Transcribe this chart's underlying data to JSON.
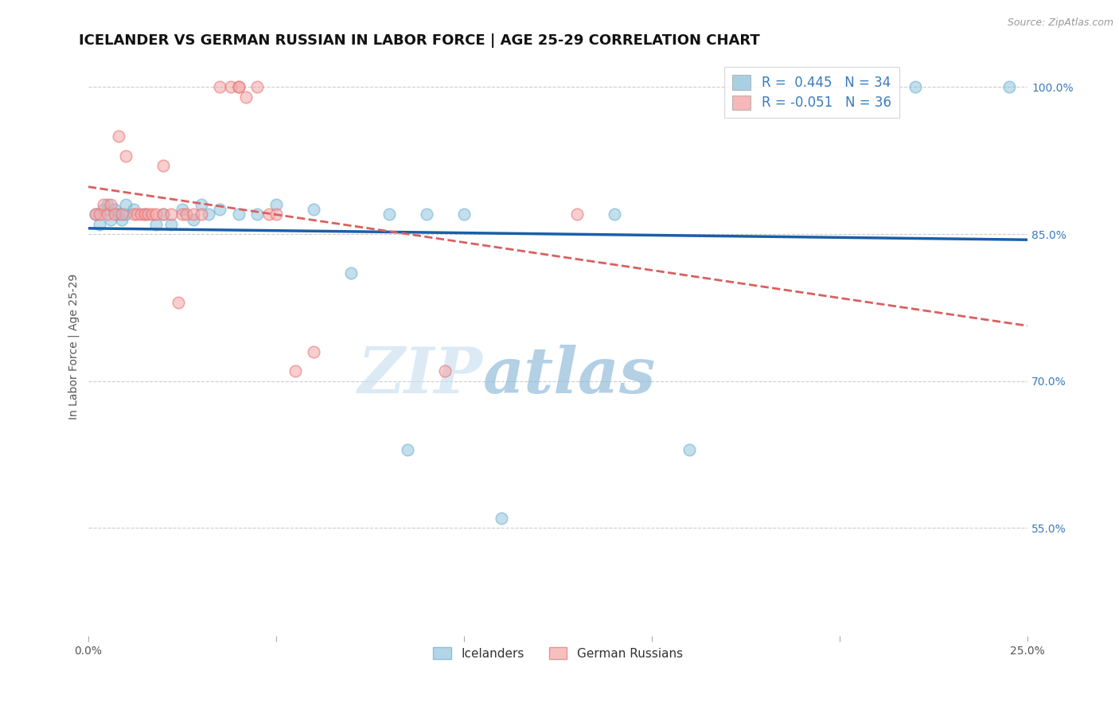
{
  "title": "ICELANDER VS GERMAN RUSSIAN IN LABOR FORCE | AGE 25-29 CORRELATION CHART",
  "source": "Source: ZipAtlas.com",
  "ylabel": "In Labor Force | Age 25-29",
  "xlim": [
    0.0,
    0.25
  ],
  "ylim": [
    0.44,
    1.03
  ],
  "xticks": [
    0.0,
    0.05,
    0.1,
    0.15,
    0.2,
    0.25
  ],
  "xtick_labels": [
    "0.0%",
    "",
    "",
    "",
    "",
    "25.0%"
  ],
  "yticks": [
    0.55,
    0.7,
    0.85,
    1.0
  ],
  "ytick_labels": [
    "55.0%",
    "70.0%",
    "85.0%",
    "100.0%"
  ],
  "legend_label1": "Icelanders",
  "legend_label2": "German Russians",
  "blue_color": "#92c5de",
  "pink_color": "#f4a6a6",
  "blue_edge_color": "#6baed6",
  "pink_edge_color": "#e87070",
  "blue_line_color": "#1a5fa8",
  "pink_line_color": "#d96060",
  "blue_r": 0.445,
  "blue_n": 34,
  "pink_r": -0.051,
  "pink_n": 36,
  "watermark_zip": "ZIP",
  "watermark_atlas": "atlas",
  "grid_color": "#cccccc",
  "background_color": "#ffffff",
  "title_fontsize": 13,
  "axis_label_fontsize": 10,
  "tick_fontsize": 10,
  "marker_size": 110,
  "marker_alpha": 0.55,
  "blue_x": [
    0.002,
    0.003,
    0.004,
    0.005,
    0.006,
    0.007,
    0.008,
    0.009,
    0.01,
    0.01,
    0.012,
    0.015,
    0.018,
    0.02,
    0.022,
    0.025,
    0.028,
    0.03,
    0.032,
    0.035,
    0.04,
    0.045,
    0.05,
    0.06,
    0.07,
    0.08,
    0.085,
    0.09,
    0.1,
    0.11,
    0.14,
    0.16,
    0.22,
    0.245
  ],
  "blue_y": [
    0.87,
    0.86,
    0.875,
    0.88,
    0.865,
    0.875,
    0.87,
    0.865,
    0.87,
    0.88,
    0.875,
    0.87,
    0.86,
    0.87,
    0.86,
    0.875,
    0.865,
    0.88,
    0.87,
    0.875,
    0.87,
    0.87,
    0.88,
    0.875,
    0.81,
    0.87,
    0.63,
    0.87,
    0.87,
    0.56,
    0.87,
    0.63,
    1.0,
    1.0
  ],
  "pink_x": [
    0.002,
    0.003,
    0.004,
    0.005,
    0.006,
    0.007,
    0.008,
    0.009,
    0.01,
    0.012,
    0.013,
    0.014,
    0.015,
    0.016,
    0.017,
    0.018,
    0.02,
    0.02,
    0.022,
    0.024,
    0.025,
    0.026,
    0.028,
    0.03,
    0.035,
    0.038,
    0.04,
    0.04,
    0.042,
    0.045,
    0.048,
    0.05,
    0.055,
    0.06,
    0.095,
    0.13
  ],
  "pink_y": [
    0.87,
    0.87,
    0.88,
    0.87,
    0.88,
    0.87,
    0.95,
    0.87,
    0.93,
    0.87,
    0.87,
    0.87,
    0.87,
    0.87,
    0.87,
    0.87,
    0.87,
    0.92,
    0.87,
    0.78,
    0.87,
    0.87,
    0.87,
    0.87,
    1.0,
    1.0,
    1.0,
    1.0,
    0.99,
    1.0,
    0.87,
    0.87,
    0.71,
    0.73,
    0.71,
    0.87
  ]
}
